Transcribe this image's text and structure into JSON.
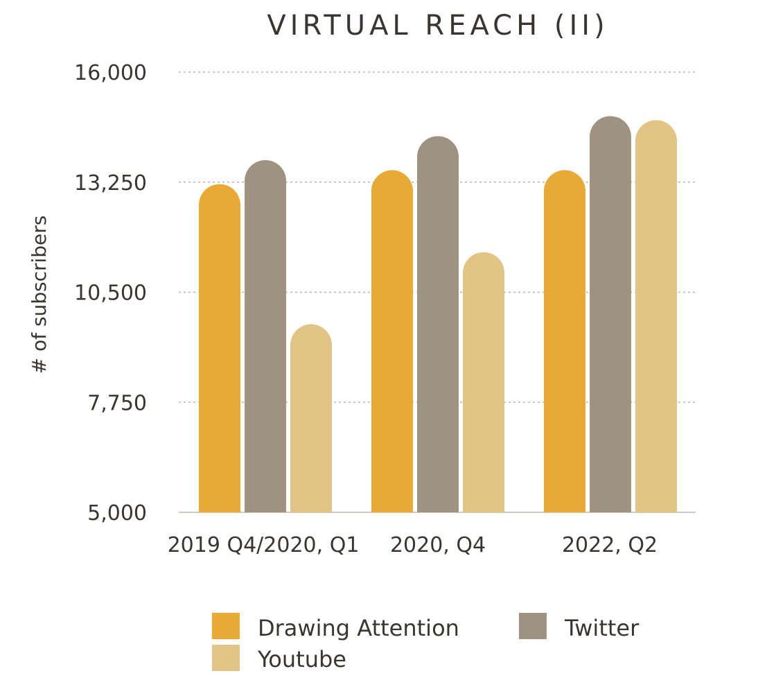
{
  "chart_data": {
    "type": "bar",
    "title": "VIRTUAL REACH (II)",
    "xlabel": "",
    "ylabel": "# of subscribers",
    "categories": [
      "2019 Q4/2020, Q1",
      "2020, Q4",
      "2022, Q2"
    ],
    "ylim": [
      5000,
      16000
    ],
    "yticks": [
      5000,
      7750,
      10500,
      13250,
      16000
    ],
    "ytick_labels": [
      "5,000",
      "7,750",
      "10,500",
      "13,250",
      "16,000"
    ],
    "grid": true,
    "legend_position": "bottom",
    "series": [
      {
        "name": "Drawing Attention",
        "color": "#e8a935",
        "values": [
          13200,
          13550,
          13550
        ]
      },
      {
        "name": "Twitter",
        "color": "#9e9280",
        "values": [
          13800,
          14400,
          14900
        ]
      },
      {
        "name": "Youtube",
        "color": "#e2c586",
        "values": [
          9700,
          11500,
          14800
        ]
      }
    ]
  }
}
